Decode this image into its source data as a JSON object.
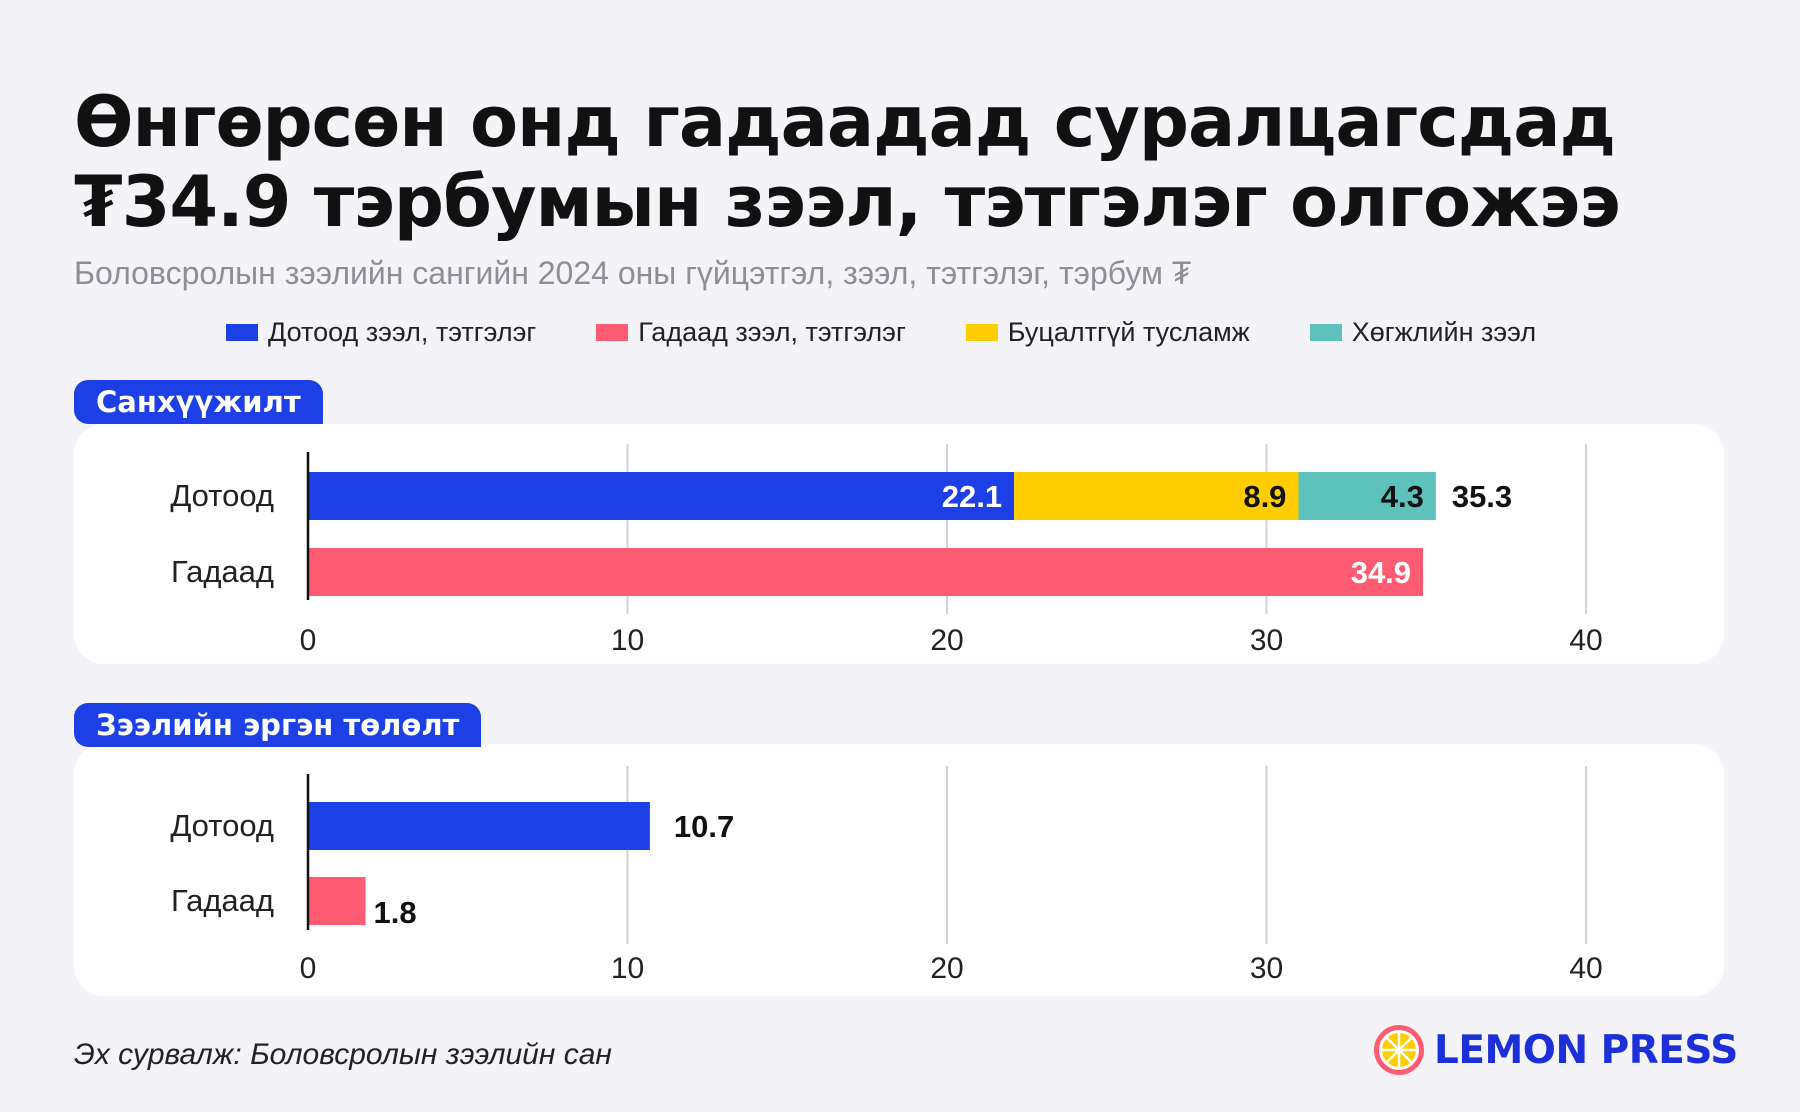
{
  "title_line1": "Өнгөрсөн онд гадаадад суралцагсдад",
  "title_line2": "₮34.9 тэрбумын зээл, тэтгэлэг олгожээ",
  "subtitle": "Боловсролын зээлийн сангийн 2024 оны гүйцэтгэл, зээл, тэтгэлэг, тэрбум ₮",
  "legend": [
    {
      "label": "Дотоод зээл, тэтгэлэг",
      "color": "#1c3fe6"
    },
    {
      "label": "Гадаад зээл, тэтгэлэг",
      "color": "#ff5b72"
    },
    {
      "label": "Буцалтгүй тусламж",
      "color": "#ffcd00"
    },
    {
      "label": "Хөгжлийн зээл",
      "color": "#5cc2bb"
    }
  ],
  "source": "Эх сурвалж: Боловсролын зээлийн сан",
  "brand": "LEMON PRESS",
  "chart_data": [
    {
      "type": "bar",
      "orientation": "horizontal",
      "stacked": true,
      "section_label": "Санхүүжилт",
      "categories": [
        "Дотоод",
        "Гадаад"
      ],
      "series": [
        {
          "name": "Дотоод зээл, тэтгэлэг",
          "color": "#1c3fe6",
          "values": [
            22.1,
            0
          ]
        },
        {
          "name": "Буцалтгүй тусламж",
          "color": "#ffcd00",
          "values": [
            8.9,
            0
          ]
        },
        {
          "name": "Хөгжлийн зээл",
          "color": "#5cc2bb",
          "values": [
            4.3,
            0
          ]
        },
        {
          "name": "Гадаад зээл, тэтгэлэг",
          "color": "#ff5b72",
          "values": [
            0,
            34.9
          ]
        }
      ],
      "totals": [
        35.3,
        null
      ],
      "xlim": [
        0,
        40
      ],
      "xticks": [
        "0",
        "10",
        "20",
        "30",
        "40"
      ],
      "grid": true
    },
    {
      "type": "bar",
      "orientation": "horizontal",
      "stacked": false,
      "section_label": "Зээлийн эргэн төлөлт",
      "categories": [
        "Дотоод",
        "Гадаад"
      ],
      "series": [
        {
          "color": "#1c3fe6",
          "values": [
            10.7,
            null
          ]
        },
        {
          "color": "#ff5b72",
          "values": [
            null,
            1.8
          ]
        }
      ],
      "xlim": [
        0,
        40
      ],
      "xticks": [
        "0",
        "10",
        "20",
        "30",
        "40"
      ],
      "grid": true
    }
  ]
}
